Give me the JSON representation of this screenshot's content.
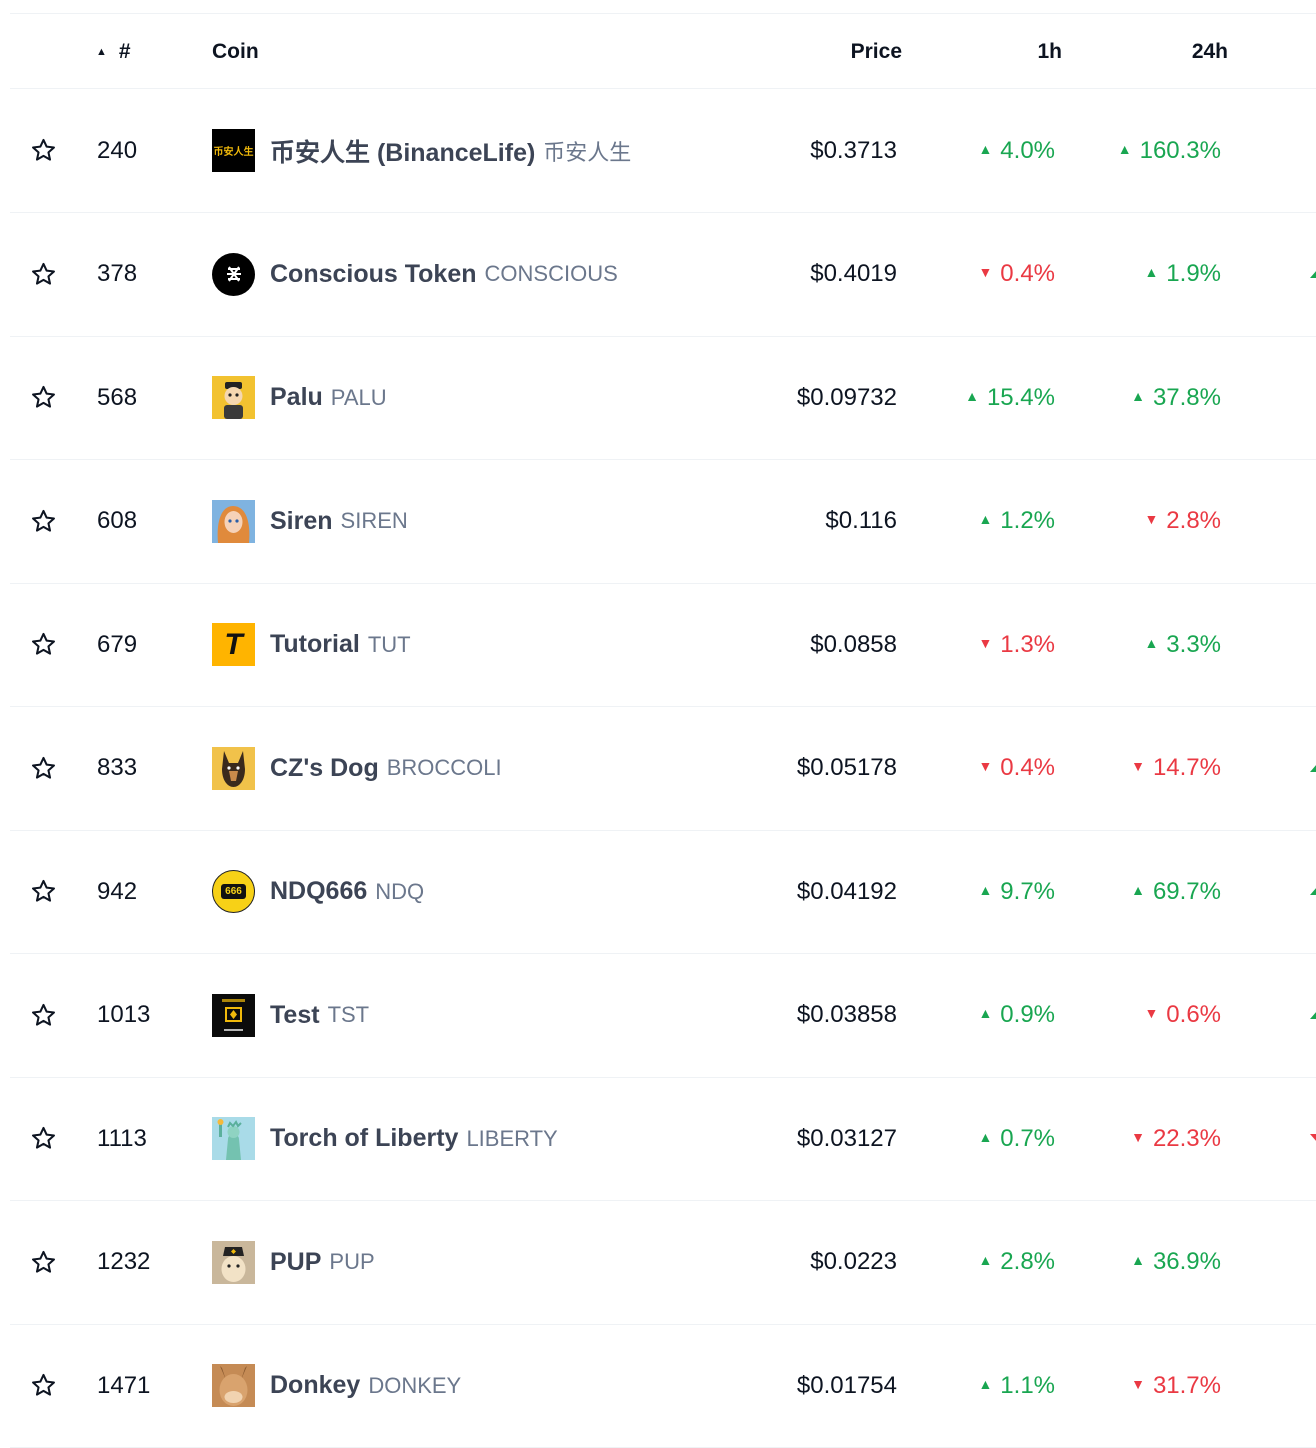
{
  "header": {
    "sort_indicator": "▲",
    "rank_label": "#",
    "coin_label": "Coin",
    "price_label": "Price",
    "change_1h_label": "1h",
    "change_24h_label": "24h"
  },
  "colors": {
    "up": "#19a651",
    "down": "#ea3943",
    "name": "#3c4455",
    "symbol": "#6b778c"
  },
  "rows": [
    {
      "rank": "240",
      "name": "币安人生 (BinanceLife)",
      "symbol": "币安人生",
      "logo_text": "币安人生",
      "price": "$0.3713",
      "h1": "4.0%",
      "h1_dir": "up",
      "h24": "160.3%",
      "h24_dir": "up"
    },
    {
      "rank": "378",
      "name": "Conscious Token",
      "symbol": "CONSCIOUS",
      "logo_text": "",
      "price": "$0.4019",
      "h1": "0.4%",
      "h1_dir": "down",
      "h24": "1.9%",
      "h24_dir": "up"
    },
    {
      "rank": "568",
      "name": "Palu",
      "symbol": "PALU",
      "logo_text": "",
      "price": "$0.09732",
      "h1": "15.4%",
      "h1_dir": "up",
      "h24": "37.8%",
      "h24_dir": "up"
    },
    {
      "rank": "608",
      "name": "Siren",
      "symbol": "SIREN",
      "logo_text": "",
      "price": "$0.116",
      "h1": "1.2%",
      "h1_dir": "up",
      "h24": "2.8%",
      "h24_dir": "down"
    },
    {
      "rank": "679",
      "name": "Tutorial",
      "symbol": "TUT",
      "logo_text": "T",
      "price": "$0.0858",
      "h1": "1.3%",
      "h1_dir": "down",
      "h24": "3.3%",
      "h24_dir": "up"
    },
    {
      "rank": "833",
      "name": "CZ's Dog",
      "symbol": "BROCCOLI",
      "logo_text": "",
      "price": "$0.05178",
      "h1": "0.4%",
      "h1_dir": "down",
      "h24": "14.7%",
      "h24_dir": "down"
    },
    {
      "rank": "942",
      "name": "NDQ666",
      "symbol": "NDQ",
      "logo_text": "666",
      "price": "$0.04192",
      "h1": "9.7%",
      "h1_dir": "up",
      "h24": "69.7%",
      "h24_dir": "up"
    },
    {
      "rank": "1013",
      "name": "Test",
      "symbol": "TST",
      "logo_text": "",
      "price": "$0.03858",
      "h1": "0.9%",
      "h1_dir": "up",
      "h24": "0.6%",
      "h24_dir": "down"
    },
    {
      "rank": "1113",
      "name": "Torch of Liberty",
      "symbol": "LIBERTY",
      "logo_text": "",
      "price": "$0.03127",
      "h1": "0.7%",
      "h1_dir": "up",
      "h24": "22.3%",
      "h24_dir": "down"
    },
    {
      "rank": "1232",
      "name": "PUP",
      "symbol": "PUP",
      "logo_text": "",
      "price": "$0.0223",
      "h1": "2.8%",
      "h1_dir": "up",
      "h24": "36.9%",
      "h24_dir": "up"
    },
    {
      "rank": "1471",
      "name": "Donkey",
      "symbol": "DONKEY",
      "logo_text": "",
      "price": "$0.01754",
      "h1": "1.1%",
      "h1_dir": "up",
      "h24": "31.7%",
      "h24_dir": "down"
    }
  ],
  "edge_trend": [
    "",
    "up",
    "",
    "",
    "",
    "up",
    "up",
    "up",
    "down",
    "",
    ""
  ]
}
